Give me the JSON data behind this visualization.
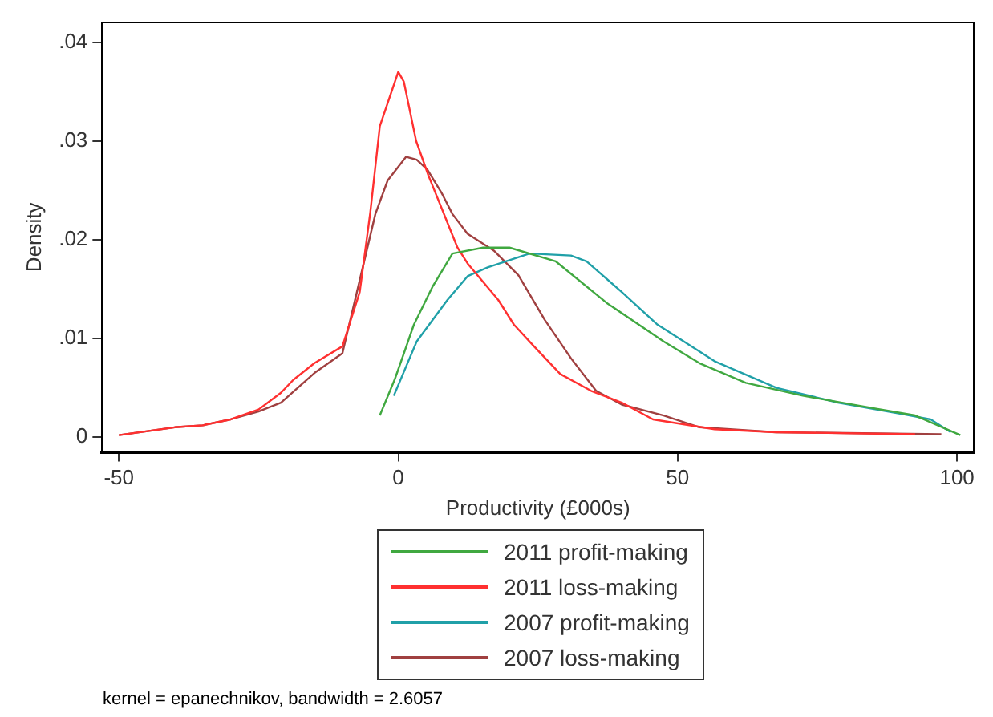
{
  "chart_data": {
    "type": "line",
    "xlabel": "Productivity (£000s)",
    "ylabel": "Density",
    "xlim": [
      -53,
      103
    ],
    "ylim": [
      -0.0015,
      0.042
    ],
    "xticks": [
      -50,
      0,
      50,
      100
    ],
    "yticks": [
      0,
      {
        "value": 0.01,
        "label": ".01"
      },
      {
        "value": 0.02,
        "label": ".02"
      },
      {
        "value": 0.03,
        "label": ".03"
      },
      {
        "value": 0.04,
        "label": ".04"
      }
    ],
    "grid": false,
    "legend": "bottom",
    "marker": "none",
    "line_style": "solid",
    "annotations": [
      "kernel = epanechnikov, bandwidth = 2.6057"
    ],
    "series": [
      {
        "name": "2011 profit-making",
        "color": "#40a840",
        "x": [
          -3.3,
          -0.6,
          2.8,
          6.1,
          9.7,
          15.2,
          19.9,
          28.2,
          37.3,
          47.5,
          53.9,
          62.2,
          72.4,
          84.3,
          92.5,
          100.6
        ],
        "values": [
          0.0022,
          0.0059,
          0.0114,
          0.0152,
          0.0186,
          0.0192,
          0.0192,
          0.0178,
          0.0136,
          0.0097,
          0.0075,
          0.0055,
          0.0042,
          0.003,
          0.0022,
          0.0002
        ]
      },
      {
        "name": "2011 loss-making",
        "color": "#ff3030",
        "x": [
          -50,
          -40,
          -35,
          -30,
          -25,
          -21,
          -18.8,
          -15,
          -10,
          -6.9,
          -5,
          -3.3,
          0,
          1,
          3.2,
          5.4,
          7.9,
          10.6,
          12.4,
          17.9,
          20.7,
          24.3,
          29,
          34.5,
          40,
          45.6,
          56.6,
          67.6,
          92.5
        ],
        "values": [
          0.0002,
          0.001,
          0.0012,
          0.0018,
          0.0028,
          0.0045,
          0.0058,
          0.0075,
          0.0092,
          0.0147,
          0.0228,
          0.0315,
          0.037,
          0.036,
          0.03,
          0.0265,
          0.023,
          0.0192,
          0.0176,
          0.0139,
          0.0114,
          0.0092,
          0.0064,
          0.0047,
          0.0035,
          0.0018,
          0.0008,
          0.0005,
          0.0003
        ]
      },
      {
        "name": "2007 profit-making",
        "color": "#20a0a8",
        "x": [
          -0.8,
          3.3,
          8.8,
          12.4,
          16,
          23.5,
          30.9,
          33.7,
          40,
          46.4,
          56.6,
          67.7,
          78.7,
          90.6,
          95.3,
          98.9
        ],
        "values": [
          0.0042,
          0.0097,
          0.0139,
          0.0163,
          0.0172,
          0.0186,
          0.0184,
          0.0178,
          0.0147,
          0.0114,
          0.0077,
          0.005,
          0.0035,
          0.0023,
          0.0018,
          0.0005
        ]
      },
      {
        "name": "2007 loss-making",
        "color": "#a04040",
        "x": [
          -50,
          -40,
          -35,
          -30,
          -25,
          -21,
          -15,
          -10,
          -6.9,
          -4.1,
          -1.9,
          1.4,
          3.3,
          5.2,
          7.7,
          9.7,
          12.4,
          17.1,
          21.5,
          26.2,
          30.9,
          35.4,
          40,
          47.5,
          53.9,
          67.6,
          97.2
        ],
        "values": [
          0.0002,
          0.001,
          0.0012,
          0.0018,
          0.0026,
          0.0035,
          0.0065,
          0.0085,
          0.0159,
          0.0226,
          0.026,
          0.0284,
          0.0281,
          0.0271,
          0.0248,
          0.0226,
          0.0206,
          0.0189,
          0.0164,
          0.0119,
          0.008,
          0.0047,
          0.0033,
          0.0022,
          0.001,
          0.0005,
          0.0003
        ]
      }
    ]
  }
}
